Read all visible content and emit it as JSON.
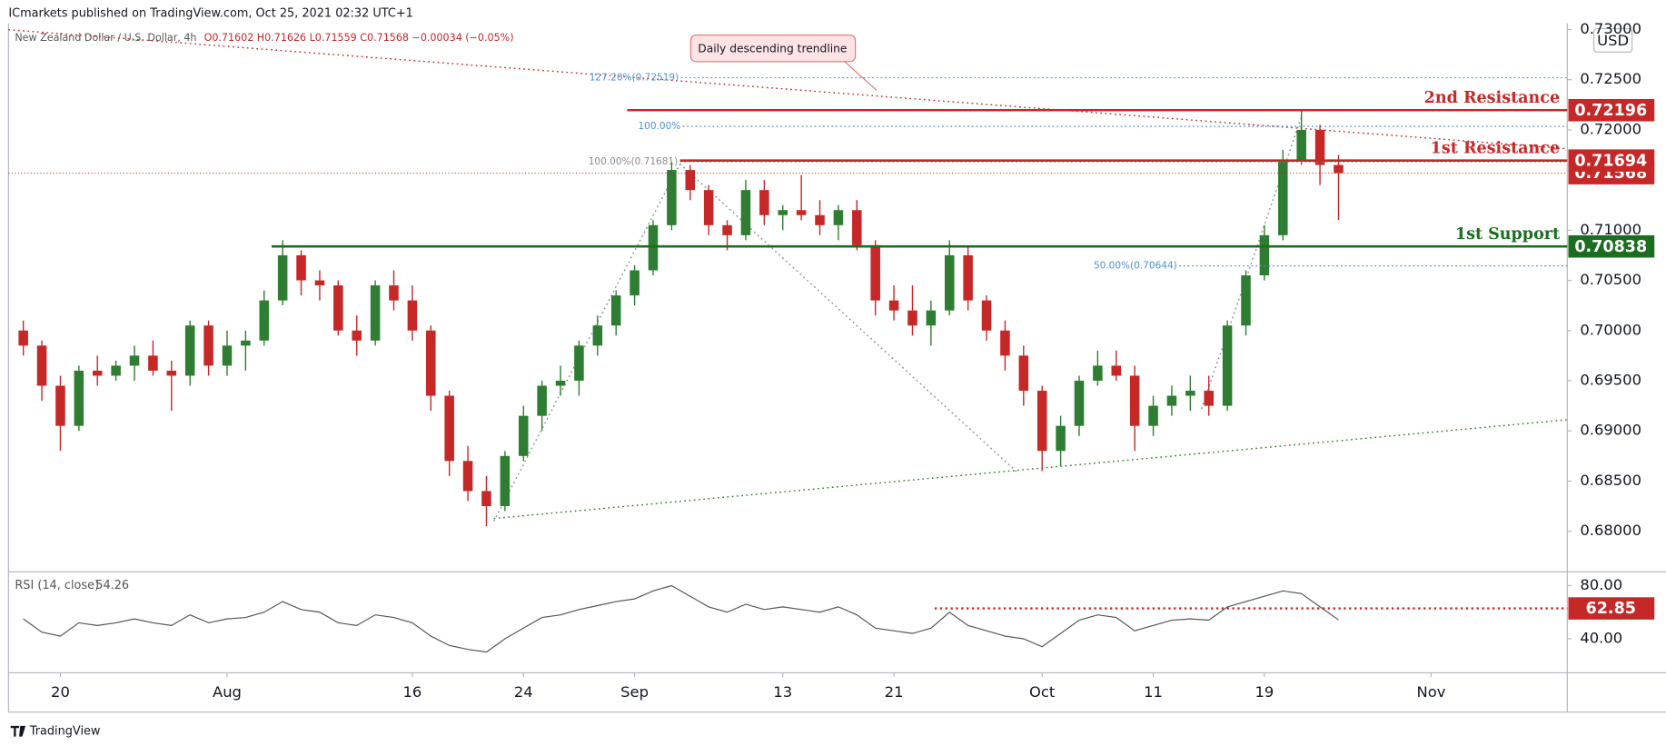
{
  "header": {
    "publisher": "ICmarkets published on TradingView.com, Oct 25, 2021 02:32 UTC+1",
    "footer": "TradingView"
  },
  "chart_data": {
    "type": "candlestick",
    "title": "New Zealand Dollar / U.S. Dollar, 4h",
    "ohlc_label": "O0.71602 H0.71626 L0.71559 C0.71568 −0.00034 (−0.05%)",
    "currency": "USD",
    "up_color": "#2e7d32",
    "down_color": "#c62828",
    "open": [
      0.7,
      0.6985,
      0.6945,
      0.6905,
      0.696,
      0.6955,
      0.6965,
      0.6975,
      0.696,
      0.6955,
      0.7005,
      0.6965,
      0.6985,
      0.699,
      0.703,
      0.7075,
      0.705,
      0.7045,
      0.7,
      0.699,
      0.7045,
      0.703,
      0.7,
      0.6935,
      0.687,
      0.684,
      0.6825,
      0.6875,
      0.6915,
      0.6945,
      0.695,
      0.6985,
      0.7005,
      0.7035,
      0.706,
      0.7105,
      0.716,
      0.714,
      0.7105,
      0.7095,
      0.714,
      0.7115,
      0.712,
      0.7115,
      0.7105,
      0.712,
      0.7085,
      0.703,
      0.702,
      0.7005,
      0.702,
      0.7075,
      0.703,
      0.7,
      0.6975,
      0.694,
      0.688,
      0.6905,
      0.695,
      0.6965,
      0.6955,
      0.6905,
      0.6925,
      0.6935,
      0.694,
      0.6925,
      0.7005,
      0.7055,
      0.7095,
      0.717,
      0.72,
      0.7165
    ],
    "high": [
      0.701,
      0.699,
      0.6955,
      0.6965,
      0.6975,
      0.697,
      0.6985,
      0.699,
      0.697,
      0.701,
      0.701,
      0.7,
      0.7,
      0.704,
      0.709,
      0.708,
      0.706,
      0.705,
      0.7015,
      0.705,
      0.706,
      0.7045,
      0.7005,
      0.694,
      0.6885,
      0.6855,
      0.688,
      0.6925,
      0.695,
      0.6965,
      0.699,
      0.7015,
      0.704,
      0.7065,
      0.711,
      0.7168,
      0.7165,
      0.7145,
      0.711,
      0.715,
      0.715,
      0.7125,
      0.7155,
      0.713,
      0.7125,
      0.713,
      0.709,
      0.7045,
      0.7045,
      0.703,
      0.709,
      0.7085,
      0.7035,
      0.701,
      0.6985,
      0.6945,
      0.6915,
      0.6955,
      0.698,
      0.698,
      0.6965,
      0.6935,
      0.6945,
      0.6955,
      0.6955,
      0.701,
      0.706,
      0.7105,
      0.718,
      0.722,
      0.7205,
      0.7175
    ],
    "low": [
      0.6975,
      0.693,
      0.688,
      0.69,
      0.6945,
      0.695,
      0.695,
      0.6955,
      0.692,
      0.6945,
      0.6955,
      0.6955,
      0.696,
      0.6985,
      0.7025,
      0.7035,
      0.703,
      0.6995,
      0.6975,
      0.6985,
      0.702,
      0.699,
      0.692,
      0.6855,
      0.683,
      0.6805,
      0.682,
      0.687,
      0.69,
      0.6935,
      0.6935,
      0.6975,
      0.6995,
      0.7025,
      0.7055,
      0.71,
      0.713,
      0.7095,
      0.708,
      0.709,
      0.7105,
      0.71,
      0.711,
      0.7095,
      0.709,
      0.708,
      0.7015,
      0.701,
      0.6995,
      0.6985,
      0.7015,
      0.702,
      0.699,
      0.696,
      0.6925,
      0.686,
      0.6865,
      0.6895,
      0.6945,
      0.695,
      0.688,
      0.6895,
      0.6915,
      0.692,
      0.6915,
      0.692,
      0.6995,
      0.705,
      0.709,
      0.7165,
      0.7145,
      0.711
    ],
    "close": [
      0.6985,
      0.6945,
      0.6905,
      0.696,
      0.6955,
      0.6965,
      0.6975,
      0.696,
      0.6955,
      0.7005,
      0.6965,
      0.6985,
      0.699,
      0.703,
      0.7075,
      0.705,
      0.7045,
      0.7,
      0.699,
      0.7045,
      0.703,
      0.7,
      0.6935,
      0.687,
      0.684,
      0.6825,
      0.6875,
      0.6915,
      0.6945,
      0.695,
      0.6985,
      0.7005,
      0.7035,
      0.706,
      0.7105,
      0.716,
      0.714,
      0.7105,
      0.7095,
      0.714,
      0.7115,
      0.712,
      0.7115,
      0.7105,
      0.712,
      0.7085,
      0.703,
      0.702,
      0.7005,
      0.702,
      0.7075,
      0.703,
      0.7,
      0.6975,
      0.694,
      0.688,
      0.6905,
      0.695,
      0.6965,
      0.6955,
      0.6905,
      0.6925,
      0.6935,
      0.694,
      0.6925,
      0.7005,
      0.7055,
      0.7095,
      0.717,
      0.72,
      0.7165,
      0.71568
    ],
    "xlim": [
      -0.8,
      83.35
    ],
    "xticks": [
      {
        "value": 2,
        "label": "20"
      },
      {
        "value": 11,
        "label": "Aug"
      },
      {
        "value": 21,
        "label": "16"
      },
      {
        "value": 27,
        "label": "24"
      },
      {
        "value": 33,
        "label": "Sep"
      },
      {
        "value": 41,
        "label": "13"
      },
      {
        "value": 47,
        "label": "21"
      },
      {
        "value": 55,
        "label": "Oct"
      },
      {
        "value": 61,
        "label": "11"
      },
      {
        "value": 67,
        "label": "19"
      },
      {
        "value": 76,
        "label": "Nov"
      }
    ],
    "ylim": [
      0.67606,
      0.73061
    ],
    "yticks": [
      {
        "value": 0.68,
        "label": "0.68000"
      },
      {
        "value": 0.685,
        "label": "0.68500"
      },
      {
        "value": 0.69,
        "label": "0.69000"
      },
      {
        "value": 0.695,
        "label": "0.69500"
      },
      {
        "value": 0.7,
        "label": "0.70000"
      },
      {
        "value": 0.705,
        "label": "0.70500"
      },
      {
        "value": 0.71,
        "label": "0.71000"
      },
      {
        "value": 0.72,
        "label": "0.72000"
      },
      {
        "value": 0.725,
        "label": "0.72500"
      },
      {
        "value": 0.73,
        "label": "0.73000"
      }
    ],
    "levels": [
      {
        "kind": "price",
        "value": 0.71568,
        "start": -0.8,
        "color": "#c62828"
      },
      {
        "kind": "fib",
        "label": "127.20%(0.72519)",
        "value": 0.72519,
        "start": 35.5,
        "color": "#4a90d9"
      },
      {
        "kind": "fib",
        "label": "100.00%",
        "value": 0.72034,
        "start": 35.6,
        "color": "#4a90d9"
      },
      {
        "kind": "fib",
        "label": "100.00%(0.71681)",
        "value": 0.71681,
        "start": 35.45,
        "color": "#8a8a8a"
      },
      {
        "kind": "fib",
        "label": "50.00%(0.70644)",
        "value": 0.70644,
        "start": 62.4,
        "color": "#4a90d9"
      },
      {
        "kind": "level",
        "label": "2nd Resistance",
        "value": 0.72196,
        "start": 32.6,
        "color": "#c62828"
      },
      {
        "kind": "level",
        "label": "1st Resistance",
        "value": 0.71694,
        "start": 35.45,
        "color": "#c62828"
      },
      {
        "kind": "level",
        "label": "1st Support",
        "value": 0.70838,
        "start": 13.4,
        "color": "#1b6e1f"
      }
    ],
    "trendlines": [
      {
        "points": [
          [
            -0.8,
            0.72998
          ],
          [
            83.35,
            0.71812
          ]
        ],
        "color": "#c62828"
      },
      {
        "points": [
          [
            25.4,
            0.68127
          ],
          [
            83.35,
            0.69111
          ]
        ],
        "color": "#2e7d32"
      },
      {
        "points": [
          [
            25.4,
            0.681
          ],
          [
            35.45,
            0.7166
          ]
        ],
        "color": "#888888"
      },
      {
        "points": [
          [
            35.45,
            0.7166
          ],
          [
            53.7,
            0.6858
          ]
        ],
        "color": "#888888"
      },
      {
        "points": [
          [
            63.6,
            0.6922
          ],
          [
            69.0,
            0.7213
          ]
        ],
        "color": "#888888"
      }
    ],
    "annotations": [
      {
        "text": "Daily descending trendline"
      }
    ],
    "rsi": {
      "title": "RSI (14, close)",
      "color": "#555555",
      "values": [
        55,
        45,
        42,
        52,
        50,
        52,
        55,
        52,
        50,
        58,
        52,
        55,
        56,
        60,
        68,
        62,
        60,
        52,
        50,
        58,
        56,
        52,
        42,
        35,
        32,
        30,
        40,
        48,
        56,
        58,
        62,
        65,
        68,
        70,
        76,
        80,
        72,
        64,
        60,
        66,
        62,
        64,
        62,
        60,
        64,
        58,
        48,
        46,
        44,
        48,
        60,
        50,
        46,
        42,
        40,
        34,
        44,
        54,
        58,
        56,
        46,
        50,
        54,
        55,
        54,
        64,
        68,
        72,
        76,
        74,
        64,
        54.26
      ],
      "ylim": [
        14.4,
        88.8
      ],
      "yticks": [
        {
          "value": 80,
          "label": "80.00"
        },
        {
          "value": 40,
          "label": "40.00"
        }
      ],
      "level": {
        "value": 62.85,
        "start": 49.2,
        "color": "#c62828"
      }
    }
  }
}
